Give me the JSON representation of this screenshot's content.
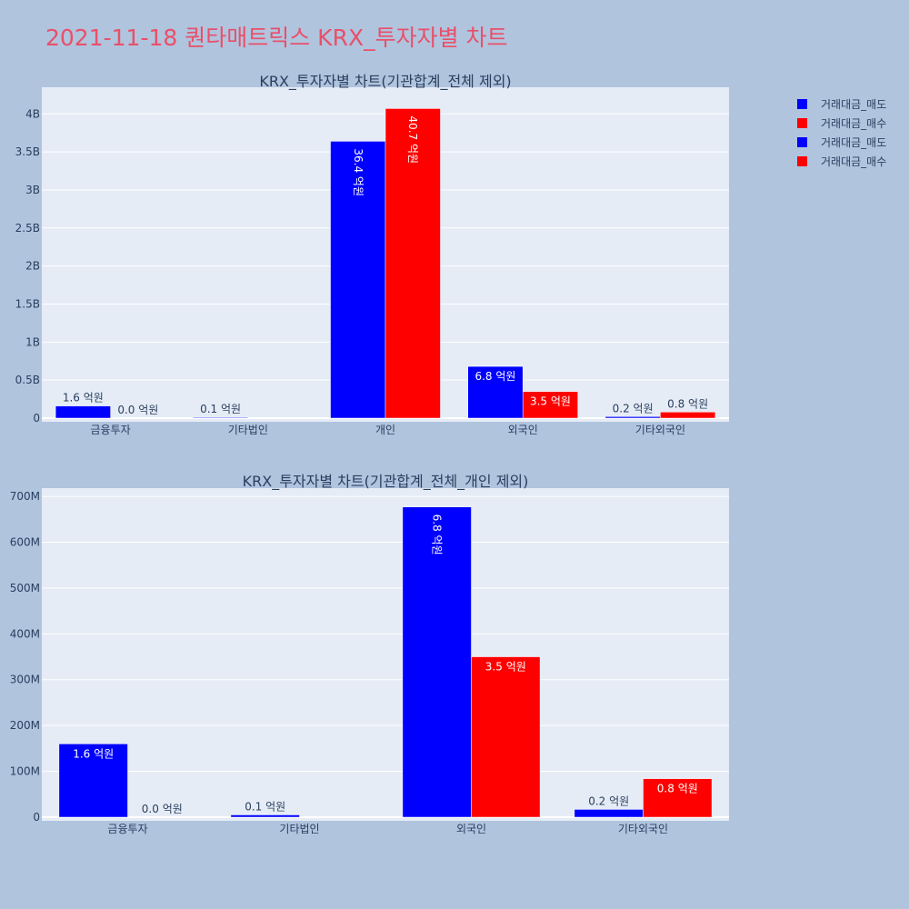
{
  "page_title": "2021-11-18 퀀타매트릭스 KRX_투자자별 차트",
  "colors": {
    "sell": "#0000ff",
    "buy": "#ff0000",
    "plot_bg": "#e5ecf6",
    "paper_bg": "#b0c4de",
    "title": "#e8506a"
  },
  "legend": [
    {
      "name": "거래대금_매도",
      "color": "#0000ff"
    },
    {
      "name": "거래대금_매수",
      "color": "#ff0000"
    },
    {
      "name": "거래대금_매도",
      "color": "#0000ff"
    },
    {
      "name": "거래대금_매수",
      "color": "#ff0000"
    }
  ],
  "chart_data": [
    {
      "type": "bar",
      "title": "KRX_투자자별 차트(기관합계_전체 제외)",
      "categories": [
        "금융투자",
        "기타법인",
        "개인",
        "외국인",
        "기타외국인"
      ],
      "series": [
        {
          "name": "거래대금_매도",
          "values": [
            160000000,
            10000000,
            3640000000,
            680000000,
            20000000
          ],
          "labels": [
            "1.6 억원",
            "0.1 억원",
            "36.4 억원",
            "6.8 억원",
            "0.2 억원"
          ]
        },
        {
          "name": "거래대금_매수",
          "values": [
            0,
            0,
            4070000000,
            350000000,
            80000000
          ],
          "labels": [
            "0.0 억원",
            "",
            "40.7 억원",
            "3.5 억원",
            "0.8 억원"
          ]
        }
      ],
      "ylim": [
        0,
        4350000000
      ],
      "yticks": [
        0,
        500000000,
        1000000000,
        1500000000,
        2000000000,
        2500000000,
        3000000000,
        3500000000,
        4000000000
      ],
      "ytick_labels": [
        "0",
        "0.5B",
        "1B",
        "1.5B",
        "2B",
        "2.5B",
        "3B",
        "3.5B",
        "4B"
      ],
      "grid": true,
      "legend_position": "top-right"
    },
    {
      "type": "bar",
      "title": "KRX_투자자별 차트(기관합계_전체_개인 제외)",
      "categories": [
        "금융투자",
        "기타법인",
        "외국인",
        "기타외국인"
      ],
      "series": [
        {
          "name": "거래대금_매도",
          "values": [
            160000000,
            5000000,
            677000000,
            17000000
          ],
          "labels": [
            "1.6 억원",
            "0.1 억원",
            "6.8 억원",
            "0.2 억원"
          ]
        },
        {
          "name": "거래대금_매수",
          "values": [
            0,
            0,
            350000000,
            84000000
          ],
          "labels": [
            "0.0 억원",
            "",
            "3.5 억원",
            "0.8 억원"
          ]
        }
      ],
      "ylim": [
        0,
        718000000
      ],
      "yticks": [
        0,
        100000000,
        200000000,
        300000000,
        400000000,
        500000000,
        600000000,
        700000000
      ],
      "ytick_labels": [
        "0",
        "100M",
        "200M",
        "300M",
        "400M",
        "500M",
        "600M",
        "700M"
      ],
      "grid": true,
      "legend_position": "top-right"
    }
  ]
}
